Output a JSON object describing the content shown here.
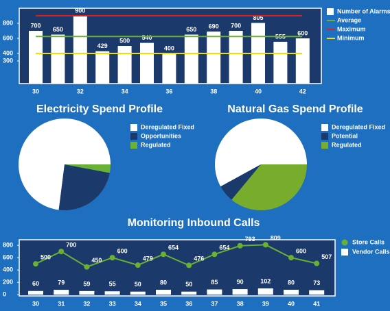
{
  "chart_data": [
    {
      "type": "bar",
      "categories": [
        30,
        null,
        32,
        null,
        34,
        null,
        36,
        null,
        38,
        null,
        40,
        null,
        42
      ],
      "series": [
        {
          "name": "Number of Alarms",
          "color": "#ffffff",
          "values": [
            700,
            650,
            900,
            429,
            500,
            540,
            400,
            650,
            690,
            700,
            805,
            555,
            600
          ]
        }
      ],
      "reference_lines": [
        {
          "name": "Average",
          "color": "#6ab034",
          "value": 625
        },
        {
          "name": "Maximum",
          "color": "#e02020",
          "value": 900
        },
        {
          "name": "Minimum",
          "color": "#f0e000",
          "value": 400
        }
      ],
      "ylim": [
        0,
        1000
      ],
      "yticks": [
        300,
        400,
        600,
        800
      ]
    },
    {
      "type": "pie",
      "title": "Electricity Spend Profile",
      "categories": [
        "Deregulated Fixed",
        "Opportunities",
        "Regulated"
      ],
      "values": [
        73,
        24,
        3
      ],
      "colors": [
        "#ffffff",
        "#1b3a6b",
        "#6ab034"
      ]
    },
    {
      "type": "pie",
      "title": "Natural Gas Spend Profile",
      "categories": [
        "Deregulated Fixed",
        "Potential",
        "Regulated"
      ],
      "values": [
        58,
        6,
        36
      ],
      "colors": [
        "#ffffff",
        "#1b3a6b",
        "#78ac2c"
      ]
    },
    {
      "type": "combo",
      "title": "Monitoring Inbound Calls",
      "categories": [
        30,
        31,
        32,
        33,
        34,
        35,
        36,
        37,
        38,
        39,
        40,
        41
      ],
      "series": [
        {
          "name": "Store Calls",
          "type": "line",
          "color": "#6ab034",
          "values": [
            500,
            700,
            450,
            600,
            479,
            654,
            476,
            654,
            793,
            809,
            600,
            507
          ]
        },
        {
          "name": "Vendor Calls",
          "type": "bar",
          "color": "#ffffff",
          "values": [
            60,
            79,
            59,
            55,
            50,
            80,
            50,
            85,
            90,
            102,
            80,
            73
          ]
        }
      ],
      "ylim": [
        -20,
        890
      ],
      "yticks": [
        0,
        200,
        400,
        600,
        800
      ]
    }
  ]
}
